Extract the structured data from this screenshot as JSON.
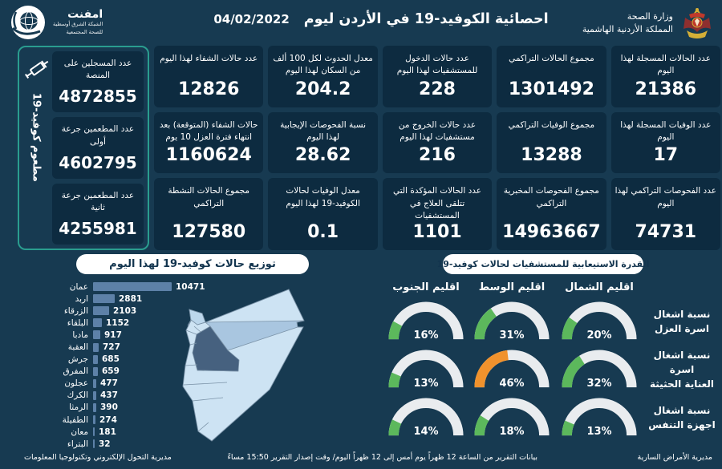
{
  "header": {
    "title": "احصائية الكوفيد-19 في الأردن ليوم",
    "date": "04/02/2022",
    "ministry_line1": "وزارة الصحة",
    "ministry_line2": "المملكة الأردنية الهاشمية",
    "emphnet_name": "امفنت",
    "emphnet_sub1": "الشبكة الشرق أوسطية",
    "emphnet_sub2": "للصحة المجتمعية"
  },
  "vaccine_panel": {
    "side_label": "مطعوم كوفيد-19",
    "cards": [
      {
        "label": "عدد المسجلين على المنصة",
        "value": "4872855"
      },
      {
        "label": "عدد المطعمين جرعة أولى",
        "value": "4602795"
      },
      {
        "label": "عدد المطعمين جرعة ثانية",
        "value": "4255981"
      }
    ]
  },
  "stats": {
    "rows": [
      [
        {
          "label": "عدد الحالات المسجلة لهذا اليوم",
          "value": "21386"
        },
        {
          "label": "مجموع الحالات التراكمي",
          "value": "1301492"
        },
        {
          "label": "عدد حالات الدخول للمستشفيات لهذا اليوم",
          "value": "228"
        },
        {
          "label": "معدل الحدوث لكل 100 ألف من السكان لهذا اليوم",
          "value": "204.2"
        },
        {
          "label": "عدد حالات الشفاء لهذا اليوم",
          "value": "12826"
        }
      ],
      [
        {
          "label": "عدد الوفيات المسجلة لهذا اليوم",
          "value": "17"
        },
        {
          "label": "مجموع الوفيات التراكمي",
          "value": "13288"
        },
        {
          "label": "عدد حالات الخروج من مستشفيات لهذا اليوم",
          "value": "216"
        },
        {
          "label": "نسبة الفحوصات الإيجابية لهذا اليوم",
          "value": "28.62"
        },
        {
          "label": "حالات الشفاء (المتوقعة) بعد انتهاء فترة العزل 10 يوم",
          "value": "1160624"
        }
      ],
      [
        {
          "label": "عدد الفحوصات التراكمي لهذا اليوم",
          "value": "74731"
        },
        {
          "label": "مجموع الفحوصات المخبرية التراكمي",
          "value": "14963667"
        },
        {
          "label": "عدد الحالات المؤكدة التي تتلقى العلاج في المستشفيات",
          "value": "1101"
        },
        {
          "label": "معدل الوفيات لحالات الكوفيد-19 لهذا اليوم",
          "value": "0.1"
        },
        {
          "label": "مجموع الحالات النشطة التراكمي",
          "value": "127580"
        }
      ]
    ]
  },
  "chart_data": [
    {
      "type": "bar",
      "title": "توزيع حالات كوفيد-19 لهذا اليوم",
      "orientation": "horizontal",
      "categories": [
        "عمان",
        "اربد",
        "الزرقاء",
        "البلقاء",
        "مادبا",
        "العقبة",
        "جرش",
        "المفرق",
        "عجلون",
        "الكرك",
        "الرمثا",
        "الطفيلة",
        "معان",
        "البتراء"
      ],
      "values": [
        10471,
        2881,
        2103,
        1152,
        917,
        727,
        685,
        659,
        477,
        437,
        390,
        274,
        181,
        32
      ],
      "xlim": [
        0,
        10471
      ],
      "bar_color": "#5d81a8"
    },
    {
      "type": "gauge",
      "title": "القدرة الاستيعابية للمستشفيات لحالات كوفيد-19",
      "columns": [
        "اقليم الشمال",
        "اقليم الوسط",
        "اقليم الجنوب"
      ],
      "rows": [
        {
          "label": "نسبة اشغال اسرة العزل",
          "label_lines": [
            "نسبة اشغال",
            "اسرة العزل"
          ],
          "values": [
            20,
            31,
            16
          ],
          "texts": [
            "20%",
            "31%",
            "16%"
          ],
          "colors": [
            "#5cb85c",
            "#5cb85c",
            "#5cb85c"
          ]
        },
        {
          "label": "نسبة اشغال اسرة العناية الحثيثة",
          "label_lines": [
            "نسبة اشغال اسرة",
            "العناية الحثيثة"
          ],
          "values": [
            32,
            46,
            13
          ],
          "texts": [
            "32%",
            "46%",
            "13%"
          ],
          "colors": [
            "#5cb85c",
            "#f0922d",
            "#5cb85c"
          ]
        },
        {
          "label": "نسبة اشغال اجهزة التنفس",
          "label_lines": [
            "نسبة اشغال",
            "اجهزة التنفس"
          ],
          "values": [
            13,
            18,
            14
          ],
          "texts": [
            "13%",
            "18%",
            "14%"
          ],
          "colors": [
            "#5cb85c",
            "#5cb85c",
            "#5cb85c"
          ]
        }
      ],
      "track_color": "#e9ecef"
    }
  ],
  "footer": {
    "right": "مديرية الأمراض السارية",
    "center": "بيانات التقرير من الساعة 12 ظهراً يوم أمس إلى 12 ظهراً اليوم/ وقت إصدار التقرير 15:50 مساءً",
    "left": "مديرية التحول الإلكتروني وتكنولوجيا المعلومات"
  },
  "theme": {
    "background": "#173a51",
    "card_background": "#0d2b40",
    "accent_green_border": "#2a9d8f",
    "bar_color": "#5d81a8",
    "gauge_green": "#5cb85c",
    "gauge_orange": "#f0922d",
    "map_light": "#cde3f3",
    "map_amman_dark": "#46617f",
    "map_zarqa_mid": "#a9c6e0"
  }
}
